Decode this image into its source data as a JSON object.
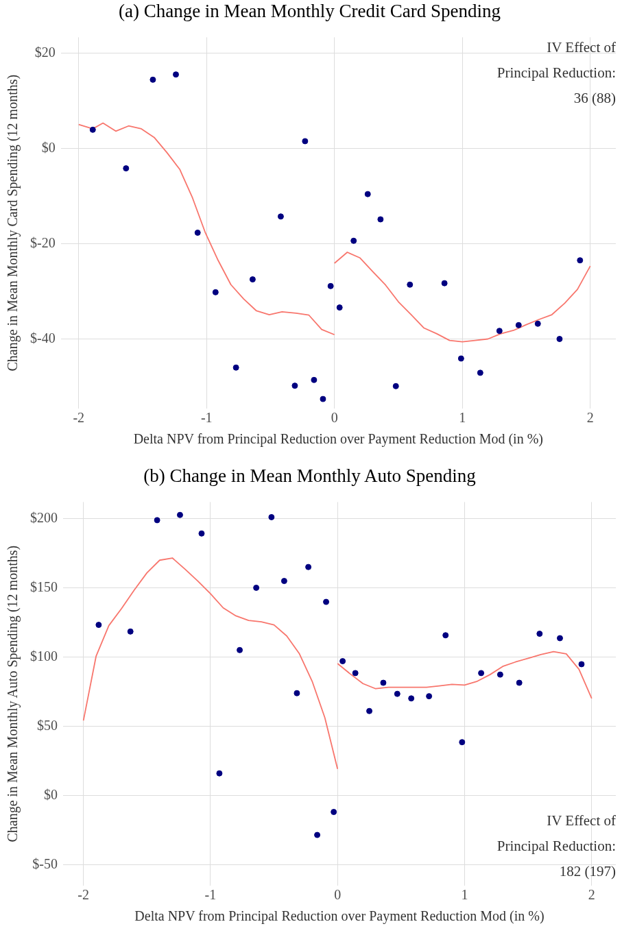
{
  "chart_data": [
    {
      "type": "scatter",
      "title": "(a) Change in Mean Monthly Credit Card Spending",
      "xlabel": "Delta NPV from Principal Reduction over Payment Reduction Mod (in %)",
      "ylabel": "Change in Mean Monthly Card Spending (12 months)",
      "xlim": [
        -2.14,
        2.2
      ],
      "ylim": [
        -54.6,
        23.3
      ],
      "xticks": [
        -2,
        -1,
        0,
        1,
        2
      ],
      "yticks": [
        {
          "value": 20,
          "label": "$20"
        },
        {
          "value": 0,
          "label": "$0"
        },
        {
          "value": -20,
          "label": "$-20"
        },
        {
          "value": -40,
          "label": "$-40"
        }
      ],
      "grid": true,
      "legend": false,
      "annotations": [
        "IV Effect of\nPrincipal Reduction:\n36 (88)"
      ],
      "series": [
        {
          "marker": "circle",
          "color": "#000080",
          "x": [
            -1.89,
            -1.63,
            -1.42,
            -1.24,
            -1.07,
            -0.93,
            -0.77,
            -0.64,
            -0.42,
            -0.31,
            -0.23,
            -0.16,
            -0.09,
            -0.03,
            0.04,
            0.15,
            0.26,
            0.36,
            0.48,
            0.59,
            0.86,
            0.99,
            1.14,
            1.29,
            1.44,
            1.59,
            1.76,
            1.92
          ],
          "values": [
            3.9,
            -4.2,
            14.4,
            15.5,
            -17.7,
            -30.2,
            -46.0,
            -27.5,
            -14.3,
            -49.8,
            1.5,
            -48.6,
            -52.6,
            -28.9,
            -33.4,
            -19.4,
            -9.6,
            -14.9,
            -49.9,
            -28.6,
            -28.3,
            -44.1,
            -47.1,
            -38.3,
            -37.1,
            -36.8,
            -40.0,
            -23.5
          ]
        },
        {
          "type": "line",
          "color": "#f8766d",
          "x": [
            -2,
            -1.89,
            -1.81,
            -1.71,
            -1.61,
            -1.51,
            -1.41,
            -1.31,
            -1.21,
            -1.11,
            -1.01,
            -0.91,
            -0.81,
            -0.71,
            -0.61,
            -0.51,
            -0.41,
            -0.3,
            -0.2,
            -0.1,
            0
          ],
          "values": [
            5.0,
            4.1,
            5.3,
            3.6,
            4.7,
            4.1,
            2.3,
            -0.9,
            -4.4,
            -10.4,
            -17.7,
            -23.5,
            -28.6,
            -31.6,
            -34.1,
            -34.9,
            -34.3,
            -34.6,
            -35.0,
            -38.0,
            -39.1
          ]
        },
        {
          "type": "line",
          "color": "#f8766d",
          "x": [
            0,
            0.1,
            0.2,
            0.3,
            0.4,
            0.5,
            0.6,
            0.7,
            0.8,
            0.9,
            1.0,
            1.1,
            1.2,
            1.3,
            1.4,
            1.5,
            1.6,
            1.7,
            1.8,
            1.9,
            2.0
          ],
          "values": [
            -24.1,
            -21.8,
            -23.0,
            -25.9,
            -28.7,
            -32.2,
            -34.9,
            -37.7,
            -38.9,
            -40.3,
            -40.6,
            -40.3,
            -40.0,
            -38.9,
            -38.2,
            -37.0,
            -35.9,
            -34.9,
            -32.5,
            -29.6,
            -24.7
          ]
        }
      ]
    },
    {
      "type": "scatter",
      "title": "(b) Change in Mean Monthly Auto Spending",
      "xlabel": "Delta NPV from Principal Reduction over Payment Reduction Mod (in %)",
      "ylabel": "Change in Mean Monthly Auto Spending (12 months)",
      "xlim": [
        -2.16,
        2.19
      ],
      "ylim": [
        -65,
        212
      ],
      "xticks": [
        -2,
        -1,
        0,
        1,
        2
      ],
      "yticks": [
        {
          "value": 200,
          "label": "$200"
        },
        {
          "value": 150,
          "label": "$150"
        },
        {
          "value": 100,
          "label": "$100"
        },
        {
          "value": 50,
          "label": "$50"
        },
        {
          "value": 0,
          "label": "$0"
        },
        {
          "value": -50,
          "label": "$-50"
        }
      ],
      "grid": true,
      "legend": false,
      "annotations": [
        "IV Effect of\nPrincipal Reduction:\n182 (197)"
      ],
      "series": [
        {
          "marker": "circle",
          "color": "#000080",
          "x": [
            -1.88,
            -1.63,
            -1.42,
            -1.24,
            -1.07,
            -0.93,
            -0.77,
            -0.64,
            -0.52,
            -0.42,
            -0.32,
            -0.23,
            -0.16,
            -0.09,
            -0.03,
            0.04,
            0.14,
            0.25,
            0.36,
            0.47,
            0.58,
            0.72,
            0.85,
            0.98,
            1.13,
            1.28,
            1.43,
            1.59,
            1.75,
            1.92
          ],
          "values": [
            123.3,
            118.5,
            198.9,
            202.7,
            189.3,
            16.1,
            105.1,
            150.1,
            201.1,
            155.0,
            74.0,
            165.1,
            -28.4,
            139.9,
            -11.8,
            97.1,
            88.5,
            61.1,
            81.5,
            73.5,
            70.2,
            71.8,
            115.8,
            38.6,
            88.5,
            87.4,
            81.5,
            116.9,
            113.7,
            94.9
          ]
        },
        {
          "type": "line",
          "color": "#f8766d",
          "x": [
            -2,
            -1.9,
            -1.8,
            -1.7,
            -1.6,
            -1.5,
            -1.4,
            -1.3,
            -1.2,
            -1.1,
            -1.0,
            -0.9,
            -0.8,
            -0.7,
            -0.6,
            -0.5,
            -0.4,
            -0.3,
            -0.2,
            -0.1,
            0
          ],
          "values": [
            54.2,
            100.8,
            122.8,
            135.1,
            148.5,
            160.9,
            170.0,
            171.6,
            163.5,
            155.0,
            145.8,
            135.6,
            129.8,
            126.5,
            125.5,
            123.3,
            115.3,
            102.4,
            82.6,
            56.3,
            19.3
          ]
        },
        {
          "type": "line",
          "color": "#f8766d",
          "x": [
            0,
            0.1,
            0.2,
            0.3,
            0.4,
            0.5,
            0.6,
            0.7,
            0.8,
            0.9,
            1.0,
            1.1,
            1.2,
            1.3,
            1.4,
            1.5,
            1.6,
            1.7,
            1.8,
            1.9,
            2.0
          ],
          "values": [
            95.4,
            87.9,
            80.9,
            77.2,
            78.2,
            78.2,
            78.2,
            78.2,
            79.2,
            80.3,
            79.8,
            82.6,
            87.4,
            93.3,
            96.5,
            99.2,
            101.9,
            104.0,
            102.4,
            91.2,
            70.2
          ]
        }
      ]
    }
  ]
}
